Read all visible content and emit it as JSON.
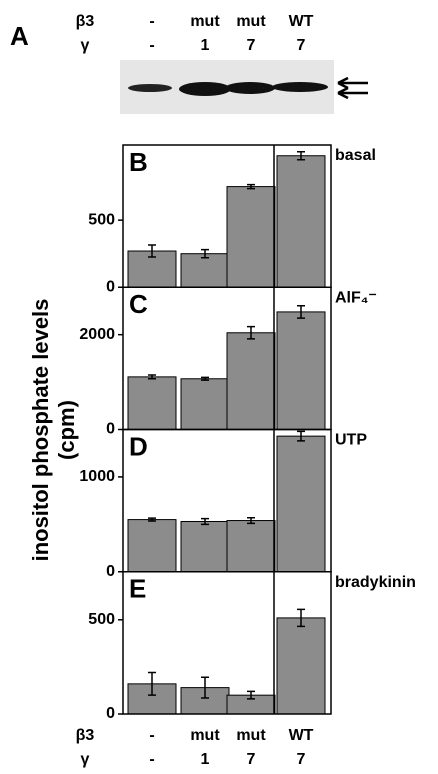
{
  "panel_a": {
    "label": "A",
    "rows": [
      {
        "name": "β3",
        "labels": [
          "-",
          "mut",
          "mut",
          "WT"
        ]
      },
      {
        "name": "γ",
        "labels": [
          "-",
          "1",
          "7",
          "7"
        ]
      }
    ]
  },
  "y_label": [
    "inositol phosphate levels",
    "(cpm)"
  ],
  "chart_data": [
    {
      "type": "bar",
      "panel": "B",
      "condition": "basal",
      "categories": [
        null,
        null,
        null,
        null
      ],
      "values": [
        270,
        250,
        750,
        980
      ],
      "errors": [
        45,
        30,
        15,
        30
      ],
      "color": "#8c8c8c",
      "ylim": [
        0,
        1060
      ],
      "yticks": [
        0,
        500
      ]
    },
    {
      "type": "bar",
      "panel": "C",
      "condition": "AlF₄⁻",
      "categories": [
        null,
        null,
        null,
        null
      ],
      "values": [
        1110,
        1070,
        2040,
        2480
      ],
      "errors": [
        40,
        30,
        130,
        130
      ],
      "color": "#8c8c8c",
      "ylim": [
        0,
        3000
      ],
      "yticks": [
        0,
        2000
      ]
    },
    {
      "type": "bar",
      "panel": "D",
      "condition": "UTP",
      "categories": [
        null,
        null,
        null,
        null
      ],
      "values": [
        550,
        530,
        540,
        1430
      ],
      "errors": [
        15,
        30,
        30,
        50
      ],
      "color": "#8c8c8c",
      "ylim": [
        0,
        1500
      ],
      "yticks": [
        0,
        1000
      ]
    },
    {
      "type": "bar",
      "panel": "E",
      "condition": "bradykinin",
      "categories": [
        null,
        null,
        null,
        null
      ],
      "values": [
        160,
        140,
        100,
        510
      ],
      "errors": [
        60,
        55,
        20,
        45
      ],
      "color": "#8c8c8c",
      "ylim": [
        0,
        755
      ],
      "yticks": [
        0,
        500
      ]
    }
  ],
  "lanes_bottom": {
    "rows": [
      {
        "name": "β3",
        "labels": [
          "-",
          "mut",
          "mut",
          "WT"
        ]
      },
      {
        "name": "γ",
        "labels": [
          "-",
          "1",
          "7",
          "7"
        ]
      }
    ]
  }
}
